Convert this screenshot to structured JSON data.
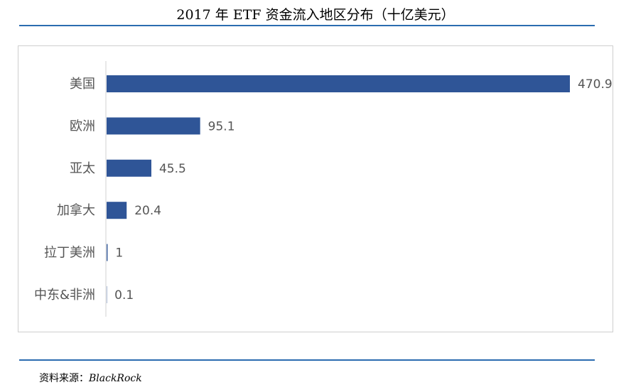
{
  "header": {
    "title": "2017 年 ETF 资金流入地区分布（十亿美元）"
  },
  "footer": {
    "source_label": "资料来源：",
    "source_name": "BlackRock"
  },
  "colors": {
    "bar": "#2f5597",
    "rule": "#2b6cb0",
    "text": "#555555"
  },
  "chart_data": {
    "type": "bar",
    "orientation": "horizontal",
    "title": "2017 年 ETF 资金流入地区分布（十亿美元）",
    "categories": [
      "美国",
      "欧洲",
      "亚太",
      "加拿大",
      "拉丁美洲",
      "中东&非洲"
    ],
    "values": [
      470.9,
      95.1,
      45.5,
      20.4,
      1,
      0.1
    ],
    "value_labels": [
      "470.9",
      "95.1",
      "45.5",
      "20.4",
      "1",
      "0.1"
    ],
    "xlim": [
      0,
      470.9
    ],
    "grid": false,
    "legend": "none"
  }
}
